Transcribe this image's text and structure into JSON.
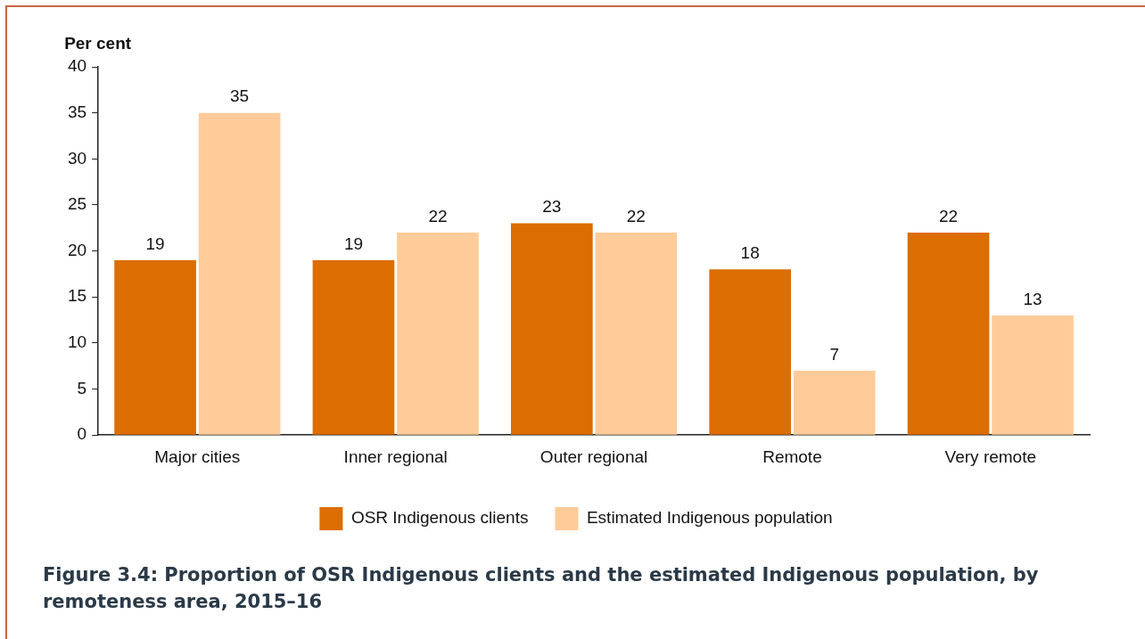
{
  "chart_data": {
    "type": "bar",
    "ylabel": "Per cent",
    "categories": [
      "Major cities",
      "Inner regional",
      "Outer regional",
      "Remote",
      "Very remote"
    ],
    "series": [
      {
        "name": "OSR Indigenous clients",
        "color": "#dc6d00",
        "values": [
          19,
          19,
          23,
          18,
          22
        ]
      },
      {
        "name": "Estimated Indigenous population",
        "color": "#ffcc99",
        "values": [
          35,
          22,
          22,
          7,
          13
        ]
      }
    ],
    "ylim": [
      0,
      40
    ],
    "yticks": [
      0,
      5,
      10,
      15,
      20,
      25,
      30,
      35,
      40
    ],
    "grid": false,
    "legend": "bottom",
    "data_labels": true,
    "annotations": [
      "Figure 3.4: Proportion of OSR Indigenous clients and the estimated Indigenous population, by remoteness area, 2015–16"
    ]
  }
}
